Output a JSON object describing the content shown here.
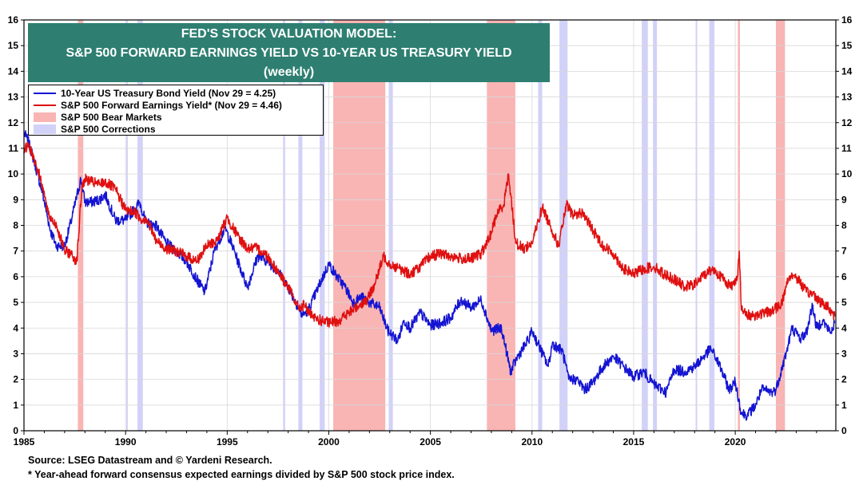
{
  "title": {
    "line1": "FED'S STOCK VALUATION MODEL:",
    "line2": "S&P 500 FORWARD EARNINGS YIELD VS 10-YEAR US TREASURY YIELD",
    "line3": "(weekly)"
  },
  "legend": {
    "treasury": "10-Year US Treasury Bond Yield (Nov 29 = 4.25)",
    "earnings": "S&P 500 Forward Earnings Yield* (Nov 29 = 4.46)",
    "bear": "S&P 500 Bear Markets",
    "corrections": "S&P 500 Corrections"
  },
  "footnotes": {
    "source": "Source: LSEG Datastream and © Yardeni Research.",
    "note": "* Year-ahead forward consensus expected earnings divided by S&P 500 stock price index."
  },
  "colors": {
    "treasury": "#1414d2",
    "earnings": "#e01010",
    "bear": "#f9b4b4",
    "corrections": "#d2d2f8",
    "title_bg": "#2e7f71"
  },
  "chart_data": {
    "type": "line",
    "xlim": [
      1985,
      2024.95
    ],
    "ylim": [
      0,
      16
    ],
    "x_ticks": [
      "1985",
      "1990",
      "1995",
      "2000",
      "2005",
      "2010",
      "2015",
      "2020"
    ],
    "y_ticks": [
      "0",
      "1",
      "2",
      "3",
      "4",
      "5",
      "6",
      "7",
      "8",
      "9",
      "10",
      "11",
      "12",
      "13",
      "14",
      "15",
      "16"
    ],
    "grid": true,
    "bear_markets": [
      [
        1987.65,
        1987.92
      ],
      [
        2000.22,
        2002.78
      ],
      [
        2007.78,
        2009.18
      ],
      [
        2020.13,
        2020.23
      ],
      [
        2022.0,
        2022.45
      ]
    ],
    "corrections": [
      [
        1990.03,
        1990.1
      ],
      [
        1990.58,
        1990.85
      ],
      [
        1997.75,
        1997.85
      ],
      [
        1998.5,
        1998.7
      ],
      [
        1999.55,
        1999.8
      ],
      [
        2002.95,
        2003.15
      ],
      [
        2010.3,
        2010.5
      ],
      [
        2011.35,
        2011.75
      ],
      [
        2015.4,
        2015.7
      ],
      [
        2015.95,
        2016.15
      ],
      [
        2018.05,
        2018.12
      ],
      [
        2018.72,
        2018.98
      ]
    ],
    "series": [
      {
        "name": "10-Year US Treasury Bond Yield (Nov 29 = 4.25)",
        "x": [
          1985.0,
          1985.2,
          1985.5,
          1985.9,
          1986.3,
          1986.6,
          1987.0,
          1987.3,
          1987.8,
          1988.0,
          1988.3,
          1988.7,
          1989.0,
          1989.5,
          1990.0,
          1990.7,
          1991.0,
          1991.5,
          1992.0,
          1992.5,
          1993.0,
          1993.5,
          1993.9,
          1994.4,
          1994.9,
          1995.3,
          1995.8,
          1996.0,
          1996.5,
          1997.0,
          1997.5,
          1998.0,
          1998.7,
          1999.0,
          1999.6,
          2000.0,
          2000.4,
          2000.8,
          2001.2,
          2001.6,
          2002.0,
          2002.5,
          2002.9,
          2003.4,
          2003.7,
          2004.0,
          2004.5,
          2005.0,
          2005.5,
          2006.0,
          2006.5,
          2007.0,
          2007.5,
          2008.0,
          2008.5,
          2008.95,
          2009.3,
          2009.8,
          2010.0,
          2010.8,
          2011.0,
          2011.5,
          2011.8,
          2012.2,
          2012.6,
          2013.0,
          2013.5,
          2014.0,
          2014.5,
          2015.0,
          2015.5,
          2016.0,
          2016.6,
          2017.0,
          2017.5,
          2018.0,
          2018.8,
          2019.2,
          2019.7,
          2020.0,
          2020.3,
          2020.6,
          2021.0,
          2021.3,
          2021.8,
          2022.0,
          2022.5,
          2022.8,
          2023.2,
          2023.5,
          2023.8,
          2024.0,
          2024.3,
          2024.7,
          2024.9
        ],
        "y": [
          11.6,
          11.3,
          10.5,
          9.3,
          7.8,
          7.2,
          7.2,
          8.1,
          9.8,
          8.9,
          8.9,
          9.0,
          9.2,
          8.2,
          8.2,
          8.9,
          8.1,
          8.0,
          7.3,
          7.0,
          6.6,
          5.9,
          5.4,
          7.1,
          7.9,
          7.1,
          6.0,
          5.6,
          6.8,
          6.6,
          6.2,
          5.6,
          4.5,
          4.7,
          5.8,
          6.5,
          6.0,
          5.6,
          5.0,
          5.2,
          5.0,
          4.8,
          3.9,
          3.5,
          4.3,
          4.0,
          4.6,
          4.1,
          4.2,
          4.4,
          5.1,
          4.8,
          5.1,
          3.9,
          4.0,
          2.3,
          2.9,
          3.5,
          3.9,
          2.5,
          3.4,
          3.1,
          2.0,
          2.0,
          1.6,
          1.9,
          2.5,
          2.9,
          2.5,
          2.1,
          2.3,
          1.8,
          1.5,
          2.4,
          2.3,
          2.5,
          3.2,
          2.6,
          1.6,
          1.9,
          0.7,
          0.6,
          1.0,
          1.6,
          1.5,
          1.6,
          3.0,
          4.0,
          3.6,
          3.8,
          4.9,
          4.0,
          4.3,
          3.8,
          4.25
        ]
      },
      {
        "name": "S&P 500 Forward Earnings Yield* (Nov 29 = 4.46)",
        "x": [
          1985.0,
          1985.2,
          1985.5,
          1985.9,
          1986.2,
          1986.6,
          1987.0,
          1987.3,
          1987.6,
          1987.85,
          1988.0,
          1988.3,
          1988.7,
          1989.0,
          1989.5,
          1990.0,
          1990.5,
          1990.8,
          1991.0,
          1991.5,
          1992.0,
          1992.5,
          1993.0,
          1993.5,
          1994.0,
          1994.5,
          1995.0,
          1995.5,
          1996.0,
          1996.5,
          1997.0,
          1997.5,
          1998.0,
          1998.5,
          1998.8,
          1999.2,
          1999.6,
          2000.0,
          2000.5,
          2001.0,
          2001.5,
          2001.9,
          2002.3,
          2002.7,
          2003.0,
          2003.5,
          2004.0,
          2004.5,
          2005.0,
          2005.5,
          2006.0,
          2006.5,
          2007.0,
          2007.5,
          2007.9,
          2008.3,
          2008.6,
          2008.85,
          2009.2,
          2009.6,
          2010.0,
          2010.5,
          2010.9,
          2011.3,
          2011.7,
          2012.0,
          2012.5,
          2013.0,
          2013.5,
          2014.0,
          2014.5,
          2015.0,
          2015.5,
          2016.0,
          2016.5,
          2017.0,
          2017.5,
          2018.0,
          2018.5,
          2018.9,
          2019.3,
          2019.8,
          2020.1,
          2020.2,
          2020.3,
          2020.6,
          2021.0,
          2021.5,
          2021.9,
          2022.3,
          2022.6,
          2022.8,
          2023.1,
          2023.5,
          2023.9,
          2024.2,
          2024.6,
          2024.9
        ],
        "y": [
          10.8,
          11.2,
          10.6,
          9.6,
          8.4,
          8.0,
          7.0,
          6.9,
          6.6,
          9.5,
          9.8,
          9.7,
          9.6,
          9.7,
          9.4,
          8.6,
          8.5,
          8.2,
          8.3,
          7.4,
          7.1,
          7.0,
          6.8,
          6.6,
          7.2,
          7.4,
          8.3,
          7.6,
          7.1,
          7.1,
          6.8,
          6.2,
          5.6,
          4.8,
          4.9,
          4.4,
          4.3,
          4.2,
          4.3,
          4.6,
          4.9,
          5.1,
          5.8,
          6.8,
          6.5,
          6.3,
          6.1,
          6.4,
          6.8,
          6.9,
          6.8,
          6.7,
          6.7,
          6.9,
          7.5,
          8.5,
          8.8,
          10.0,
          7.3,
          7.1,
          7.3,
          8.7,
          8.0,
          7.2,
          8.8,
          8.4,
          8.5,
          7.8,
          7.2,
          6.9,
          6.3,
          6.1,
          6.3,
          6.4,
          6.1,
          5.9,
          5.6,
          5.7,
          6.1,
          6.3,
          6.0,
          5.6,
          6.0,
          7.0,
          4.7,
          4.5,
          4.5,
          4.6,
          4.7,
          5.0,
          5.9,
          6.1,
          5.9,
          5.4,
          5.3,
          5.0,
          4.8,
          4.46
        ]
      }
    ]
  }
}
